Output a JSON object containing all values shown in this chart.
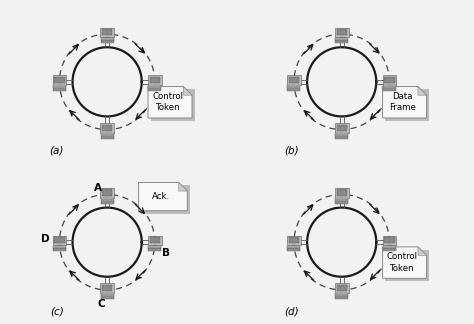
{
  "background_color": "#f2f2f2",
  "box_labels": [
    [
      "Control",
      "Token"
    ],
    [
      "Data",
      "Frame"
    ],
    [
      "Ack."
    ],
    [
      "Control",
      "Token"
    ]
  ],
  "panel_labels": [
    "(a)",
    "(b)",
    "(c)",
    "(d)"
  ],
  "node_labels_c": [
    "A",
    "B",
    "C",
    "D"
  ],
  "ring_color": "#1a1a1a",
  "dashed_color": "#444444",
  "arrow_color": "#111111",
  "box_color": "#f8f8f8",
  "box_shadow": "#bbbbbb",
  "box_edge": "#888888",
  "spoke_color": "#555555",
  "computer_body": "#c0c0c0",
  "computer_screen": "#888888",
  "computer_dark": "#555555"
}
